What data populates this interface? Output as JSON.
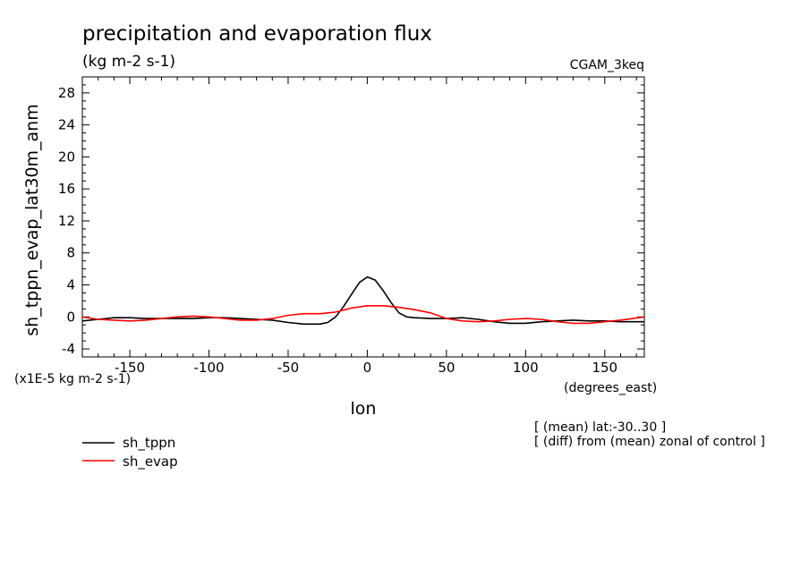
{
  "chart_data": {
    "type": "line",
    "title": "precipitation and evaporation flux",
    "units_label": "(kg m-2 s-1)",
    "dataset_label": "CGAM_3keq",
    "ylabel": "sh_tppn_evap_lat30m_anm",
    "xlabel": "lon",
    "x_units": "(degrees_east)",
    "y_scale_note": "(x1E-5 kg m-2 s-1)",
    "xlim": [
      -180,
      175
    ],
    "ylim": [
      -5,
      30
    ],
    "x_ticks": [
      -150,
      -100,
      -50,
      0,
      50,
      100,
      150
    ],
    "x_tick_labels": [
      "-150",
      "-100",
      "-50",
      "0",
      "50",
      "100",
      "150"
    ],
    "y_ticks": [
      -4,
      0,
      4,
      8,
      12,
      16,
      20,
      24,
      28
    ],
    "y_tick_labels": [
      "-4",
      "0",
      "4",
      "8",
      "12",
      "16",
      "20",
      "24",
      "28"
    ],
    "notes": [
      "[ (mean) lat:-30..30 ]",
      "[ (diff) from (mean) zonal of control ]"
    ],
    "series": [
      {
        "name": "sh_tppn",
        "color": "#000000",
        "x": [
          -180,
          -170,
          -160,
          -150,
          -140,
          -130,
          -120,
          -110,
          -100,
          -90,
          -80,
          -70,
          -60,
          -50,
          -40,
          -30,
          -25,
          -20,
          -15,
          -10,
          -5,
          0,
          5,
          10,
          15,
          20,
          25,
          30,
          40,
          50,
          60,
          70,
          80,
          90,
          100,
          110,
          120,
          130,
          140,
          150,
          160,
          175
        ],
        "values": [
          -0.5,
          -0.3,
          -0.1,
          -0.1,
          -0.2,
          -0.2,
          -0.2,
          -0.2,
          -0.1,
          -0.1,
          -0.2,
          -0.3,
          -0.4,
          -0.7,
          -0.9,
          -0.9,
          -0.7,
          0.0,
          1.3,
          2.8,
          4.3,
          5.0,
          4.6,
          3.3,
          1.8,
          0.5,
          0.0,
          -0.1,
          -0.2,
          -0.2,
          -0.1,
          -0.3,
          -0.6,
          -0.8,
          -0.8,
          -0.6,
          -0.5,
          -0.4,
          -0.5,
          -0.5,
          -0.6,
          -0.6
        ]
      },
      {
        "name": "sh_evap",
        "color": "#ff0000",
        "x": [
          -180,
          -170,
          -160,
          -150,
          -140,
          -130,
          -120,
          -110,
          -100,
          -90,
          -80,
          -70,
          -60,
          -50,
          -40,
          -30,
          -20,
          -10,
          0,
          10,
          20,
          30,
          40,
          50,
          60,
          70,
          80,
          90,
          100,
          110,
          120,
          130,
          140,
          150,
          160,
          175
        ],
        "values": [
          0.0,
          -0.3,
          -0.4,
          -0.5,
          -0.4,
          -0.2,
          0.0,
          0.1,
          0.0,
          -0.2,
          -0.4,
          -0.4,
          -0.2,
          0.2,
          0.4,
          0.4,
          0.6,
          1.1,
          1.4,
          1.4,
          1.2,
          0.9,
          0.5,
          -0.2,
          -0.5,
          -0.6,
          -0.5,
          -0.3,
          -0.2,
          -0.3,
          -0.6,
          -0.8,
          -0.8,
          -0.6,
          -0.4,
          0.0
        ]
      }
    ]
  }
}
